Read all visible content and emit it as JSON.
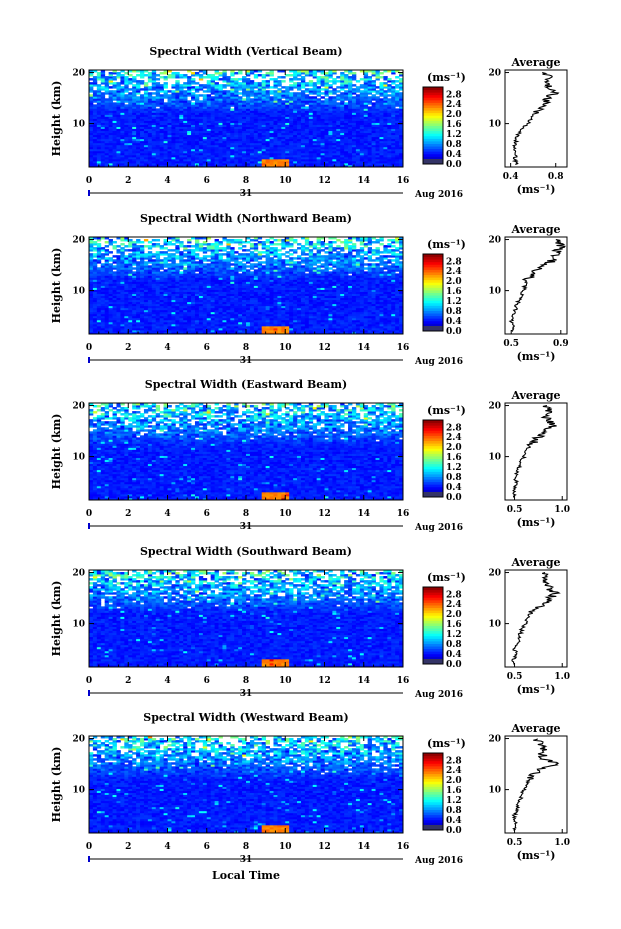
{
  "figure": {
    "x_axis_label": "Local Time",
    "date_label": "Aug 2016",
    "day_label": "31",
    "height_label": "Height (km)",
    "colorbar_unit": "(ms⁻¹)",
    "average_title": "Average",
    "average_unit": "(ms⁻¹)"
  },
  "chart_data": [
    {
      "type": "heatmap",
      "title": "Spectral Width (Vertical Beam)",
      "xlabel": "",
      "ylabel": "Height (km)",
      "x_ticks": [
        "0",
        "2",
        "4",
        "6",
        "8",
        "10",
        "12",
        "14",
        "16"
      ],
      "y_ticks": [
        "10",
        "20"
      ],
      "xlim": [
        0,
        16
      ],
      "ylim": [
        1.5,
        20.5
      ],
      "colorbar": {
        "unit": "(ms⁻¹)",
        "ticks": [
          "0.0",
          "0.4",
          "0.8",
          "1.2",
          "1.6",
          "2.0",
          "2.4",
          "2.8"
        ],
        "range": [
          0,
          3.0
        ]
      },
      "average_profile": {
        "title": "Average",
        "xlabel": "(ms⁻¹)",
        "x_ticks": [
          "0.4",
          "0.8"
        ],
        "xlim": [
          0.35,
          0.9
        ],
        "y_ticks": [
          "10",
          "20"
        ],
        "ylim": [
          1.5,
          20.5
        ],
        "heights": [
          2,
          3,
          4,
          5,
          6,
          7,
          8,
          9,
          10,
          11,
          12,
          13,
          14,
          15,
          16,
          17,
          18,
          19,
          20
        ],
        "values": [
          0.45,
          0.44,
          0.44,
          0.43,
          0.44,
          0.45,
          0.47,
          0.5,
          0.55,
          0.58,
          0.62,
          0.66,
          0.7,
          0.72,
          0.8,
          0.74,
          0.72,
          0.76,
          0.68
        ]
      }
    },
    {
      "type": "heatmap",
      "title": "Spectral Width (Northward Beam)",
      "xlabel": "",
      "ylabel": "Height (km)",
      "x_ticks": [
        "0",
        "2",
        "4",
        "6",
        "8",
        "10",
        "12",
        "14",
        "16"
      ],
      "y_ticks": [
        "10",
        "20"
      ],
      "xlim": [
        0,
        16
      ],
      "ylim": [
        1.5,
        20.5
      ],
      "colorbar": {
        "unit": "(ms⁻¹)",
        "ticks": [
          "0.0",
          "0.4",
          "0.8",
          "1.2",
          "1.6",
          "2.0",
          "2.4",
          "2.8"
        ],
        "range": [
          0,
          3.0
        ]
      },
      "average_profile": {
        "title": "Average",
        "xlabel": "(ms⁻¹)",
        "x_ticks": [
          "0.5",
          "0.9"
        ],
        "xlim": [
          0.45,
          0.95
        ],
        "y_ticks": [
          "10",
          "20"
        ],
        "ylim": [
          1.5,
          20.5
        ],
        "heights": [
          2,
          3,
          4,
          5,
          6,
          7,
          8,
          9,
          10,
          11,
          12,
          13,
          14,
          15,
          16,
          17,
          18,
          19,
          20
        ],
        "values": [
          0.52,
          0.51,
          0.5,
          0.51,
          0.53,
          0.54,
          0.56,
          0.58,
          0.6,
          0.61,
          0.63,
          0.66,
          0.7,
          0.78,
          0.84,
          0.86,
          0.88,
          0.9,
          0.86
        ]
      }
    },
    {
      "type": "heatmap",
      "title": "Spectral Width (Eastward Beam)",
      "xlabel": "",
      "ylabel": "Height (km)",
      "x_ticks": [
        "0",
        "2",
        "4",
        "6",
        "8",
        "10",
        "12",
        "14",
        "16"
      ],
      "y_ticks": [
        "10",
        "20"
      ],
      "xlim": [
        0,
        16
      ],
      "ylim": [
        1.5,
        20.5
      ],
      "colorbar": {
        "unit": "(ms⁻¹)",
        "ticks": [
          "0.0",
          "0.4",
          "0.8",
          "1.2",
          "1.6",
          "2.0",
          "2.4",
          "2.8"
        ],
        "range": [
          0,
          3.0
        ]
      },
      "average_profile": {
        "title": "Average",
        "xlabel": "(ms⁻¹)",
        "x_ticks": [
          "0.5",
          "1.0"
        ],
        "xlim": [
          0.4,
          1.05
        ],
        "y_ticks": [
          "10",
          "20"
        ],
        "ylim": [
          1.5,
          20.5
        ],
        "heights": [
          2,
          3,
          4,
          5,
          6,
          7,
          8,
          9,
          10,
          11,
          12,
          13,
          14,
          15,
          16,
          17,
          18,
          19,
          20
        ],
        "values": [
          0.5,
          0.49,
          0.5,
          0.52,
          0.5,
          0.53,
          0.55,
          0.57,
          0.6,
          0.62,
          0.66,
          0.7,
          0.76,
          0.84,
          0.9,
          0.86,
          0.82,
          0.86,
          0.84
        ]
      }
    },
    {
      "type": "heatmap",
      "title": "Spectral Width (Southward Beam)",
      "xlabel": "",
      "ylabel": "Height (km)",
      "x_ticks": [
        "0",
        "2",
        "4",
        "6",
        "8",
        "10",
        "12",
        "14",
        "16"
      ],
      "y_ticks": [
        "10",
        "20"
      ],
      "xlim": [
        0,
        16
      ],
      "ylim": [
        1.5,
        20.5
      ],
      "colorbar": {
        "unit": "(ms⁻¹)",
        "ticks": [
          "0.0",
          "0.4",
          "0.8",
          "1.2",
          "1.6",
          "2.0",
          "2.4",
          "2.8"
        ],
        "range": [
          0,
          3.0
        ]
      },
      "average_profile": {
        "title": "Average",
        "xlabel": "(ms⁻¹)",
        "x_ticks": [
          "0.5",
          "1.0"
        ],
        "xlim": [
          0.4,
          1.05
        ],
        "y_ticks": [
          "10",
          "20"
        ],
        "ylim": [
          1.5,
          20.5
        ],
        "heights": [
          2,
          3,
          4,
          5,
          6,
          7,
          8,
          9,
          10,
          11,
          12,
          13,
          14,
          15,
          16,
          17,
          18,
          19,
          20
        ],
        "values": [
          0.5,
          0.49,
          0.52,
          0.5,
          0.53,
          0.55,
          0.56,
          0.58,
          0.61,
          0.63,
          0.67,
          0.72,
          0.8,
          0.88,
          0.92,
          0.86,
          0.84,
          0.8,
          0.82
        ]
      }
    },
    {
      "type": "heatmap",
      "title": "Spectral Width (Westward Beam)",
      "xlabel": "Local Time",
      "ylabel": "Height (km)",
      "x_ticks": [
        "0",
        "2",
        "4",
        "6",
        "8",
        "10",
        "12",
        "14",
        "16"
      ],
      "y_ticks": [
        "10",
        "20"
      ],
      "xlim": [
        0,
        16
      ],
      "ylim": [
        1.5,
        20.5
      ],
      "colorbar": {
        "unit": "(ms⁻¹)",
        "ticks": [
          "0.0",
          "0.4",
          "0.8",
          "1.2",
          "1.6",
          "2.0",
          "2.4",
          "2.8"
        ],
        "range": [
          0,
          3.0
        ]
      },
      "average_profile": {
        "title": "Average",
        "xlabel": "(ms⁻¹)",
        "x_ticks": [
          "0.5",
          "1.0"
        ],
        "xlim": [
          0.4,
          1.05
        ],
        "y_ticks": [
          "10",
          "20"
        ],
        "ylim": [
          1.5,
          20.5
        ],
        "heights": [
          2,
          3,
          4,
          5,
          6,
          7,
          8,
          9,
          10,
          11,
          12,
          13,
          14,
          15,
          16,
          17,
          18,
          19,
          20
        ],
        "values": [
          0.5,
          0.5,
          0.51,
          0.5,
          0.52,
          0.54,
          0.56,
          0.57,
          0.6,
          0.62,
          0.66,
          0.7,
          0.78,
          0.95,
          0.82,
          0.78,
          0.8,
          0.76,
          0.74
        ]
      }
    }
  ]
}
